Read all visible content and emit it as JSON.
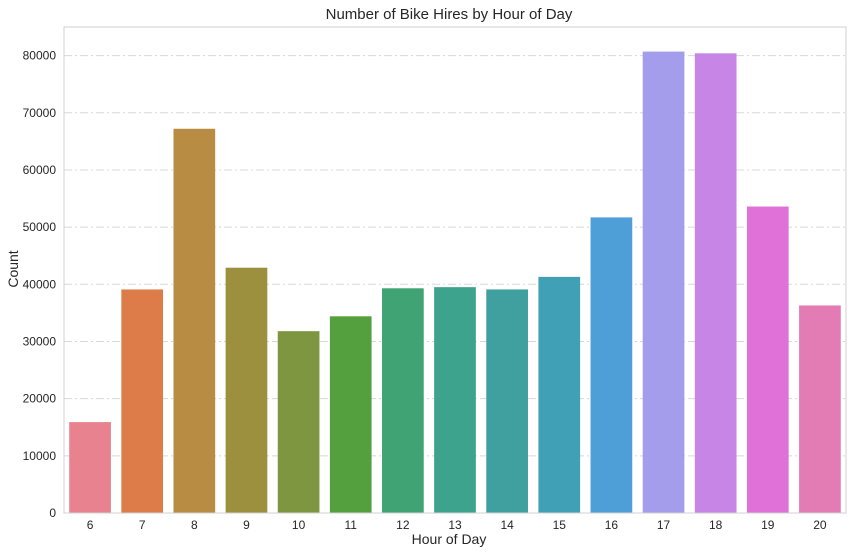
{
  "chart_data": {
    "type": "bar",
    "title": "Number of Bike Hires by Hour of Day",
    "xlabel": "Hour of Day",
    "ylabel": "Count",
    "categories": [
      "6",
      "7",
      "8",
      "9",
      "10",
      "11",
      "12",
      "13",
      "14",
      "15",
      "16",
      "17",
      "18",
      "19",
      "20"
    ],
    "values": [
      15900,
      39100,
      67200,
      42900,
      31800,
      34400,
      39300,
      39500,
      39100,
      41300,
      51700,
      80700,
      80400,
      53600,
      36300
    ],
    "colors": [
      "#e8828e",
      "#dd7c48",
      "#b88c42",
      "#9c903f",
      "#7e963f",
      "#54a03e",
      "#3fa373",
      "#3ea38c",
      "#3fa09f",
      "#40a0b6",
      "#4e9fd8",
      "#a39deb",
      "#c786e6",
      "#e071d8",
      "#e37bb4"
    ],
    "ylim": [
      0,
      85000
    ],
    "yticks": [
      0,
      10000,
      20000,
      30000,
      40000,
      50000,
      60000,
      70000,
      80000
    ],
    "grid": true,
    "legend": "none"
  }
}
